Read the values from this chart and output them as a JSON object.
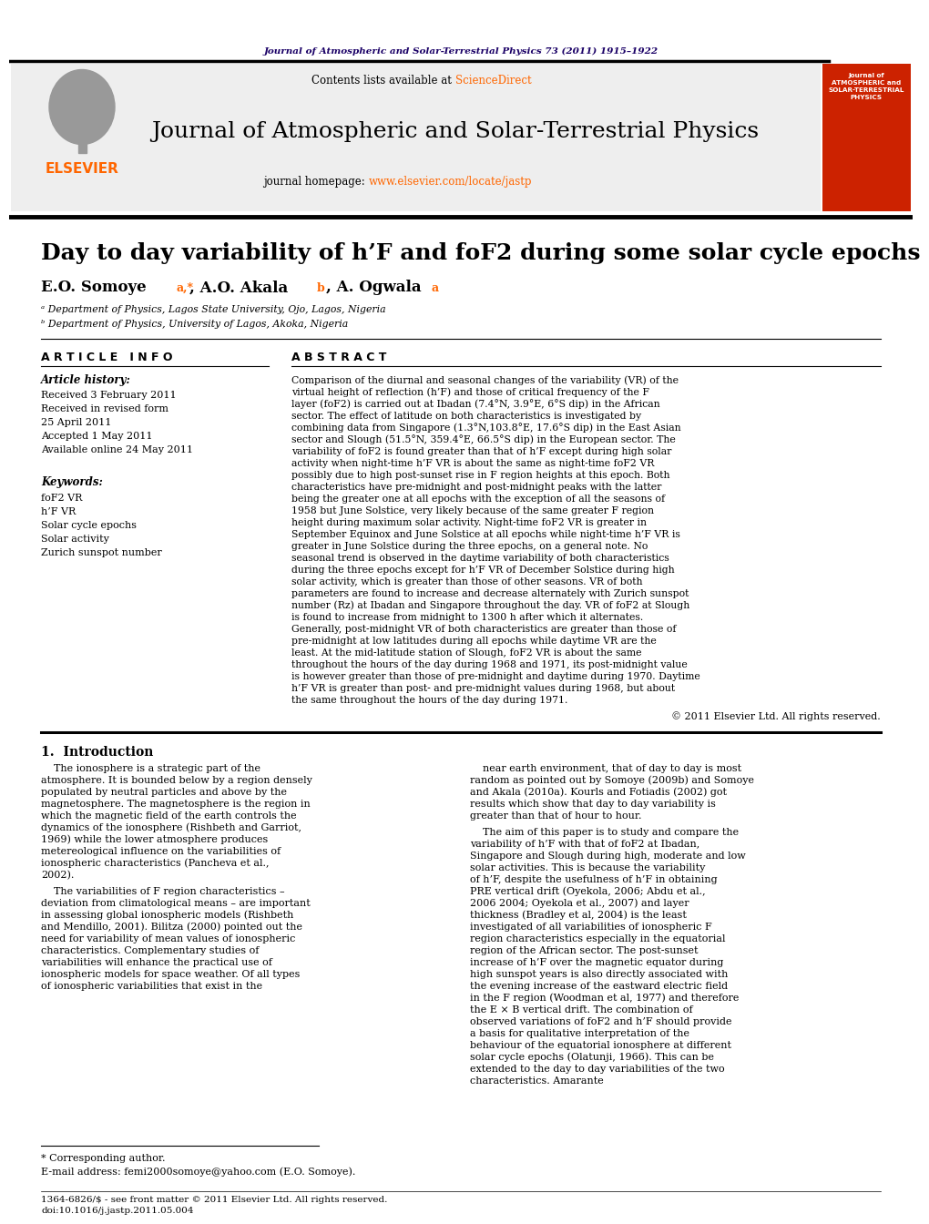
{
  "background_color": "#ffffff",
  "top_journal_line": "Journal of Atmospheric and Solar-Terrestrial Physics 73 (2011) 1915–1922",
  "journal_title": "Journal of Atmospheric and Solar-Terrestrial Physics",
  "contents_line": "Contents lists available at ScienceDirect",
  "journal_homepage": "journal homepage: www.elsevier.com/locate/jastp",
  "paper_title": "Day to day variability of h’F and foF2 during some solar cycle epochs",
  "affil_a": "ᵃ Department of Physics, Lagos State University, Ojo, Lagos, Nigeria",
  "affil_b": "ᵇ Department of Physics, University of Lagos, Akoka, Nigeria",
  "article_info_header": "A R T I C L E   I N F O",
  "abstract_header": "A B S T R A C T",
  "article_history_label": "Article history:",
  "received_1": "Received 3 February 2011",
  "received_revised": "Received in revised form",
  "received_revised_date": "25 April 2011",
  "accepted": "Accepted 1 May 2011",
  "available": "Available online 24 May 2011",
  "keywords_label": "Keywords:",
  "keywords": [
    "foF2 VR",
    "h’F VR",
    "Solar cycle epochs",
    "Solar activity",
    "Zurich sunspot number"
  ],
  "abstract_text": "Comparison of the diurnal and seasonal changes of the variability (VR) of the virtual height of reflection (h’F) and those of critical frequency of the F layer (foF2) is carried out at Ibadan (7.4°N, 3.9°E, 6°S dip) in the African sector. The effect of latitude on both characteristics is investigated by combining data from Singapore (1.3°N,103.8°E, 17.6°S dip) in the East Asian sector and Slough (51.5°N, 359.4°E, 66.5°S dip) in the European sector. The variability of foF2 is found greater than that of h’F except during high solar activity when night-time h’F VR is about the same as night-time foF2 VR possibly due to high post-sunset rise in F region heights at this epoch. Both characteristics have pre-midnight and post-midnight peaks with the latter being the greater one at all epochs with the exception of all the seasons of 1958 but June Solstice, very likely because of the same greater F region height during maximum solar activity. Night-time foF2 VR is greater in September Equinox and June Solstice at all epochs while night-time h’F VR is greater in June Solstice during the three epochs, on a general note. No seasonal trend is observed in the daytime variability of both characteristics during the three epochs except for h’F VR of December Solstice during high solar activity, which is greater than those of other seasons. VR of both parameters are found to increase and decrease alternately with Zurich sunspot number (Rz) at Ibadan and Singapore throughout the day. VR of foF2 at Slough is found to increase from midnight to 1300 h after which it alternates. Generally, post-midnight VR of both characteristics are greater than those of pre-midnight at low latitudes during all epochs while daytime VR are the least. At the mid-latitude station of Slough, foF2 VR is about the same throughout the hours of the day during 1968 and 1971, its post-midnight value is however greater than those of pre-midnight and daytime during 1970. Daytime h’F VR is greater than post- and pre-midnight values during 1968, but about the same throughout the hours of the day during 1971.",
  "copyright": "© 2011 Elsevier Ltd. All rights reserved.",
  "intro_header": "1.  Introduction",
  "intro_col1": "The ionosphere is a strategic part of the atmosphere. It is bounded below by a region densely populated by neutral particles and above by the magnetosphere. The magnetosphere is the region in which the magnetic field of the earth controls the dynamics of the ionosphere (Rishbeth and Garriot, 1969) while the lower atmosphere produces metereological influence on the variabilities of ionospheric characteristics (Pancheva et al., 2002).\n\nThe variabilities of F region characteristics – deviation from climatological means – are important in assessing global ionospheric models (Rishbeth and Mendillo, 2001). Bilitza (2000) pointed out the need for variability of mean values of ionospheric characteristics. Complementary studies of variabilities will enhance the practical use of ionospheric models for space weather. Of all types of ionospheric variabilities that exist in the",
  "intro_col2": "near earth environment, that of day to day is most random as pointed out by Somoye (2009b) and Somoye and Akala (2010a). Kourls and Fotiadis (2002) got results which show that day to day variability is greater than that of hour to hour.\n\nThe aim of this paper is to study and compare the variability of h’F with that of foF2 at Ibadan, Singapore and Slough during high, moderate and low solar activities. This is because the variability of h’F, despite the usefulness of h’F in obtaining PRE vertical drift (Oyekola, 2006; Abdu et al., 2006 2004; Oyekola et al., 2007) and layer thickness (Bradley et al, 2004) is the least investigated of all variabilities of ionospheric F region characteristics especially in the equatorial region of the African sector. The post-sunset increase of h’F over the magnetic equator during high sunspot years is also directly associated with the evening increase of the eastward electric field in the F region (Woodman et al, 1977) and therefore the E × B vertical drift. The combination of observed variations of foF2 and h’F should provide a basis for qualitative interpretation of the behaviour of the equatorial ionosphere at different solar cycle epochs (Olatunji, 1966). This can be extended to the day to day variabilities of the two characteristics. Amarante",
  "footnote_corresponding": "* Corresponding author.",
  "footnote_email": "E-mail address: femi2000somoye@yahoo.com (E.O. Somoye).",
  "footer_line1": "1364-6826/$ - see front matter © 2011 Elsevier Ltd. All rights reserved.",
  "footer_line2": "doi:10.1016/j.jastp.2011.05.004",
  "elsevier_color": "#ff6600",
  "sciencedirect_color": "#ff6600",
  "url_color": "#ff6600",
  "top_line_color": "#1a0066",
  "cite_color": "#ff6600"
}
